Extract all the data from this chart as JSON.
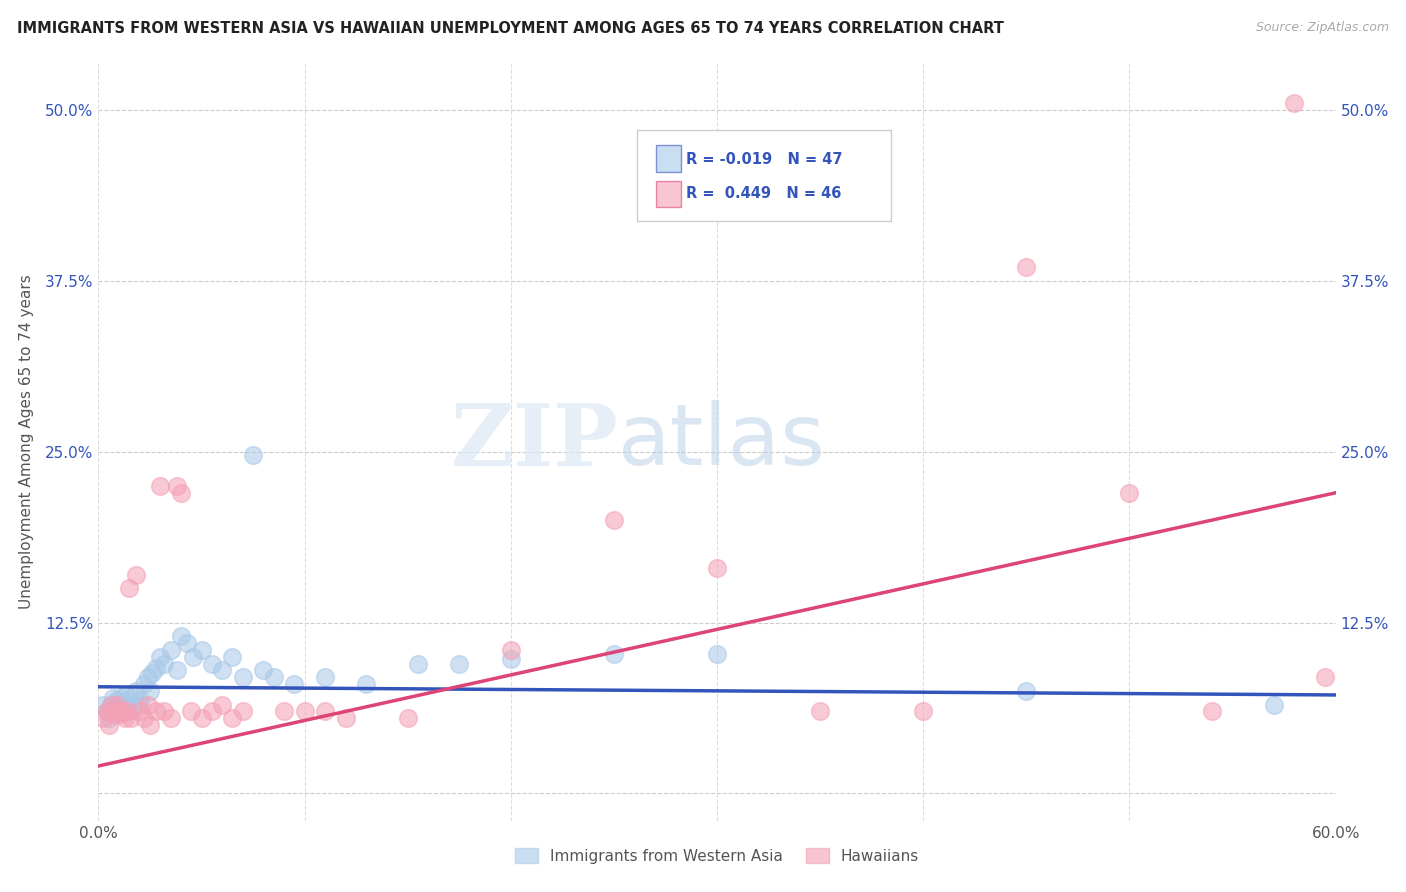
{
  "title": "IMMIGRANTS FROM WESTERN ASIA VS HAWAIIAN UNEMPLOYMENT AMONG AGES 65 TO 74 YEARS CORRELATION CHART",
  "source": "Source: ZipAtlas.com",
  "ylabel": "Unemployment Among Ages 65 to 74 years",
  "x_min": 0.0,
  "x_max": 0.6,
  "y_min": -0.02,
  "y_max": 0.535,
  "x_ticks": [
    0.0,
    0.1,
    0.2,
    0.3,
    0.4,
    0.5,
    0.6
  ],
  "x_tick_labels": [
    "0.0%",
    "",
    "",
    "",
    "",
    "",
    "60.0%"
  ],
  "y_ticks": [
    0.0,
    0.125,
    0.25,
    0.375,
    0.5
  ],
  "y_tick_labels": [
    "",
    "12.5%",
    "25.0%",
    "37.5%",
    "50.0%"
  ],
  "legend_r_blue": "-0.019",
  "legend_n_blue": "47",
  "legend_r_pink": "0.449",
  "legend_n_pink": "46",
  "legend_label_blue": "Immigrants from Western Asia",
  "legend_label_pink": "Hawaiians",
  "blue_color": "#a8c8e8",
  "pink_color": "#f4a0b5",
  "blue_line_color": "#3355bb",
  "pink_line_color": "#dd4477",
  "watermark_zip": "ZIP",
  "watermark_atlas": "atlas",
  "blue_scatter_x": [
    0.002,
    0.004,
    0.005,
    0.006,
    0.007,
    0.008,
    0.009,
    0.01,
    0.011,
    0.012,
    0.013,
    0.014,
    0.015,
    0.016,
    0.018,
    0.019,
    0.02,
    0.022,
    0.024,
    0.025,
    0.026,
    0.028,
    0.03,
    0.032,
    0.035,
    0.038,
    0.04,
    0.043,
    0.046,
    0.05,
    0.055,
    0.06,
    0.065,
    0.07,
    0.075,
    0.08,
    0.085,
    0.095,
    0.11,
    0.13,
    0.155,
    0.175,
    0.2,
    0.25,
    0.3,
    0.45,
    0.57
  ],
  "blue_scatter_y": [
    0.065,
    0.06,
    0.055,
    0.065,
    0.07,
    0.06,
    0.068,
    0.065,
    0.07,
    0.06,
    0.072,
    0.065,
    0.06,
    0.07,
    0.075,
    0.065,
    0.068,
    0.08,
    0.085,
    0.075,
    0.088,
    0.092,
    0.1,
    0.095,
    0.105,
    0.09,
    0.115,
    0.11,
    0.1,
    0.105,
    0.095,
    0.09,
    0.1,
    0.085,
    0.248,
    0.09,
    0.085,
    0.08,
    0.085,
    0.08,
    0.095,
    0.095,
    0.098,
    0.102,
    0.102,
    0.075,
    0.065
  ],
  "pink_scatter_x": [
    0.002,
    0.004,
    0.005,
    0.006,
    0.007,
    0.008,
    0.009,
    0.01,
    0.011,
    0.012,
    0.013,
    0.014,
    0.015,
    0.016,
    0.018,
    0.02,
    0.022,
    0.024,
    0.025,
    0.028,
    0.03,
    0.032,
    0.035,
    0.038,
    0.04,
    0.045,
    0.05,
    0.055,
    0.06,
    0.065,
    0.07,
    0.09,
    0.1,
    0.11,
    0.12,
    0.15,
    0.2,
    0.25,
    0.3,
    0.35,
    0.4,
    0.45,
    0.5,
    0.54,
    0.58,
    0.595
  ],
  "pink_scatter_y": [
    0.055,
    0.06,
    0.05,
    0.065,
    0.06,
    0.058,
    0.065,
    0.06,
    0.058,
    0.06,
    0.055,
    0.06,
    0.15,
    0.055,
    0.16,
    0.06,
    0.055,
    0.065,
    0.05,
    0.06,
    0.225,
    0.06,
    0.055,
    0.225,
    0.22,
    0.06,
    0.055,
    0.06,
    0.065,
    0.055,
    0.06,
    0.06,
    0.06,
    0.06,
    0.055,
    0.055,
    0.105,
    0.2,
    0.165,
    0.06,
    0.06,
    0.385,
    0.22,
    0.06,
    0.505,
    0.085
  ],
  "blue_line_start_x": 0.0,
  "blue_line_end_x": 0.6,
  "blue_line_start_y": 0.078,
  "blue_line_end_y": 0.072,
  "pink_line_start_x": 0.0,
  "pink_line_end_x": 0.6,
  "pink_line_start_y": 0.02,
  "pink_line_end_y": 0.22
}
